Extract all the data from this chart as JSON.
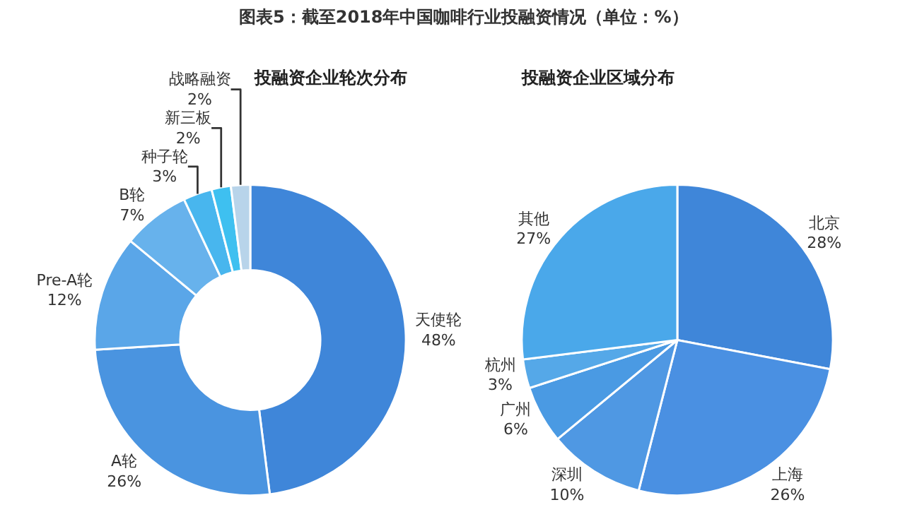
{
  "chart_data": [
    {
      "type": "donut",
      "title": "投融资企业轮次分布",
      "annotations": [
        "图表5：截至2018年中国咖啡行业投融资情况（单位：%）"
      ],
      "categories": [
        "天使轮",
        "A轮",
        "Pre-A轮",
        "B轮",
        "种子轮",
        "新三板",
        "战略融资"
      ],
      "values": [
        48,
        26,
        12,
        7,
        3,
        2,
        2
      ],
      "value_labels": [
        "48%",
        "26%",
        "12%",
        "7%",
        "3%",
        "2%",
        "2%"
      ],
      "colors": [
        "#3f86d9",
        "#4a94e0",
        "#5aa6e8",
        "#67b2ec",
        "#48b6ee",
        "#3ec0f0",
        "#b8d4ea"
      ]
    },
    {
      "type": "pie",
      "title": "投融资企业区域分布",
      "categories": [
        "北京",
        "上海",
        "深圳",
        "广州",
        "杭州",
        "其他"
      ],
      "values": [
        28,
        26,
        10,
        6,
        3,
        27
      ],
      "value_labels": [
        "28%",
        "26%",
        "10%",
        "6%",
        "3%",
        "27%"
      ],
      "colors": [
        "#3f86d9",
        "#4a90e2",
        "#4f98e3",
        "#4a9ae3",
        "#55a8e8",
        "#4aa8ea"
      ]
    }
  ]
}
